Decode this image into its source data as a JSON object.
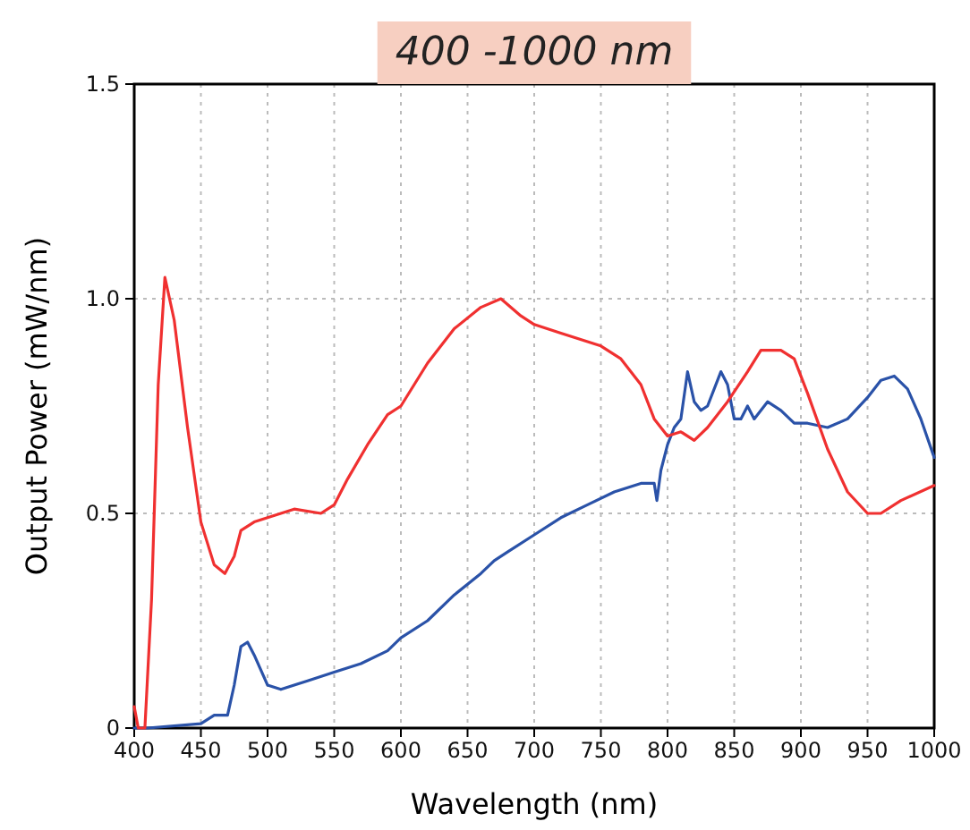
{
  "chart_data": {
    "type": "line",
    "title": "400 -1000 nm",
    "xlabel": "Wavelength (nm)",
    "ylabel": "Output Power (mW/nm)",
    "xlim": [
      400,
      1000
    ],
    "xticks": [
      400,
      450,
      500,
      550,
      600,
      650,
      700,
      750,
      800,
      850,
      900,
      950,
      1000
    ],
    "ylim": [
      0,
      1.5
    ],
    "yticks": [
      0.0,
      {
        "value": 0.5,
        "label": "0.5"
      },
      {
        "value": 1,
        "label": "1.0"
      },
      1.5
    ],
    "grid": true,
    "line_style": "solid",
    "marker": "none",
    "series": [
      {
        "color": "#2a52a8",
        "x": [
          400,
          410,
          450,
          460,
          470,
          475,
          480,
          485,
          490,
          500,
          510,
          530,
          550,
          570,
          590,
          600,
          620,
          640,
          660,
          670,
          680,
          700,
          720,
          740,
          760,
          780,
          790,
          792,
          795,
          800,
          805,
          810,
          815,
          820,
          825,
          830,
          840,
          845,
          850,
          855,
          860,
          865,
          875,
          885,
          895,
          905,
          920,
          935,
          950,
          960,
          970,
          980,
          990,
          1000
        ],
        "values": [
          0,
          0,
          0.01,
          0.03,
          0.03,
          0.1,
          0.19,
          0.2,
          0.17,
          0.1,
          0.09,
          0.11,
          0.13,
          0.15,
          0.18,
          0.21,
          0.25,
          0.31,
          0.36,
          0.39,
          0.41,
          0.45,
          0.49,
          0.52,
          0.55,
          0.57,
          0.57,
          0.53,
          0.6,
          0.66,
          0.7,
          0.72,
          0.83,
          0.76,
          0.74,
          0.75,
          0.83,
          0.8,
          0.72,
          0.72,
          0.75,
          0.72,
          0.76,
          0.74,
          0.71,
          0.71,
          0.7,
          0.72,
          0.77,
          0.81,
          0.82,
          0.79,
          0.72,
          0.63
        ]
      },
      {
        "color": "#f03030",
        "x": [
          400,
          403,
          408,
          413,
          418,
          423,
          430,
          440,
          450,
          460,
          468,
          475,
          480,
          490,
          500,
          520,
          540,
          550,
          560,
          575,
          590,
          600,
          620,
          640,
          660,
          675,
          690,
          700,
          720,
          750,
          765,
          780,
          790,
          800,
          810,
          820,
          830,
          845,
          860,
          870,
          885,
          895,
          905,
          920,
          935,
          950,
          960,
          975,
          1000
        ],
        "values": [
          0.05,
          0,
          0,
          0.3,
          0.8,
          1.05,
          0.95,
          0.7,
          0.48,
          0.38,
          0.36,
          0.4,
          0.46,
          0.48,
          0.49,
          0.51,
          0.5,
          0.52,
          0.58,
          0.66,
          0.73,
          0.75,
          0.85,
          0.93,
          0.98,
          1,
          0.96,
          0.94,
          0.92,
          0.89,
          0.86,
          0.8,
          0.72,
          0.68,
          0.69,
          0.67,
          0.7,
          0.76,
          0.83,
          0.88,
          0.88,
          0.86,
          0.78,
          0.65,
          0.55,
          0.5,
          0.5,
          0.53,
          0.565
        ]
      }
    ]
  }
}
